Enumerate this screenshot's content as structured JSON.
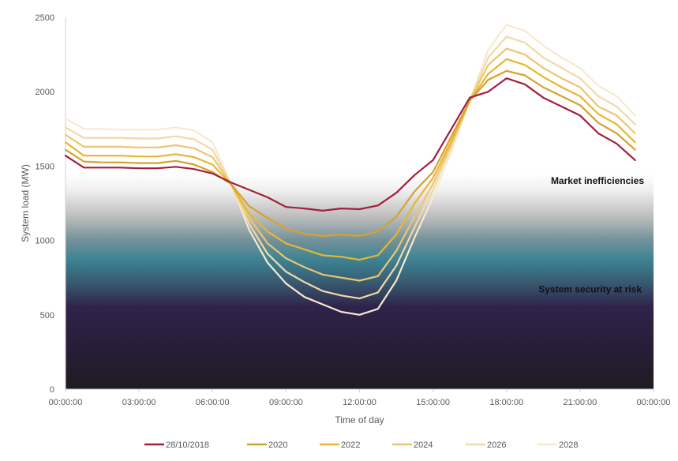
{
  "chart_data": {
    "type": "line",
    "title": "",
    "xlabel": "Time of day",
    "ylabel": "System load (MW)",
    "ylim": [
      0,
      2500
    ],
    "y_ticks": [
      "0",
      "500",
      "1000",
      "1500",
      "2000",
      "2500"
    ],
    "x_ticks": [
      "00:00:00",
      "03:00:00",
      "06:00:00",
      "09:00:00",
      "12:00:00",
      "15:00:00",
      "18:00:00",
      "21:00:00",
      "00:00:00"
    ],
    "x_hours": [
      0,
      0.75,
      1.5,
      2.25,
      3,
      3.75,
      4.5,
      5.25,
      6,
      6.75,
      7.5,
      8.25,
      9,
      9.75,
      10.5,
      11.25,
      12,
      12.75,
      13.5,
      14.25,
      15,
      15.75,
      16.5,
      17.25,
      18,
      18.75,
      19.5,
      20.25,
      21,
      21.75,
      22.5,
      23.25
    ],
    "grid": false,
    "legend_position": "bottom",
    "background_bands": [
      {
        "label": "Market inefficiencies",
        "from": 1000,
        "to": 1450
      },
      {
        "label": "System security at risk",
        "from": 0,
        "to": 1000
      }
    ],
    "series": [
      {
        "name": "28/10/2018",
        "color": "#a31f3c",
        "values": [
          1570,
          1490,
          1490,
          1490,
          1485,
          1485,
          1495,
          1480,
          1450,
          1390,
          1340,
          1290,
          1225,
          1215,
          1200,
          1215,
          1210,
          1235,
          1320,
          1440,
          1540,
          1750,
          1960,
          2000,
          2090,
          2050,
          1960,
          1900,
          1840,
          1720,
          1650,
          1540
        ]
      },
      {
        "name": "2020",
        "color": "#d4a32e",
        "values": [
          1610,
          1530,
          1525,
          1525,
          1520,
          1520,
          1535,
          1510,
          1460,
          1380,
          1230,
          1150,
          1080,
          1045,
          1030,
          1040,
          1030,
          1060,
          1160,
          1330,
          1460,
          1700,
          1940,
          2080,
          2140,
          2110,
          2030,
          1970,
          1910,
          1790,
          1720,
          1610
        ]
      },
      {
        "name": "2022",
        "color": "#e8b630",
        "values": [
          1660,
          1570,
          1570,
          1570,
          1565,
          1565,
          1580,
          1560,
          1510,
          1380,
          1180,
          1060,
          980,
          940,
          900,
          890,
          870,
          900,
          1040,
          1250,
          1420,
          1670,
          1940,
          2120,
          2220,
          2180,
          2100,
          2030,
          1970,
          1850,
          1780,
          1660
        ]
      },
      {
        "name": "2024",
        "color": "#edc571",
        "values": [
          1710,
          1630,
          1630,
          1630,
          1625,
          1625,
          1640,
          1620,
          1560,
          1380,
          1150,
          980,
          880,
          820,
          770,
          750,
          730,
          760,
          930,
          1160,
          1380,
          1650,
          1940,
          2180,
          2290,
          2250,
          2160,
          2090,
          2030,
          1900,
          1840,
          1720
        ]
      },
      {
        "name": "2026",
        "color": "#f2d9a7",
        "values": [
          1760,
          1690,
          1690,
          1690,
          1685,
          1685,
          1700,
          1680,
          1610,
          1380,
          1110,
          910,
          790,
          720,
          660,
          630,
          610,
          650,
          830,
          1090,
          1340,
          1630,
          1940,
          2230,
          2370,
          2330,
          2230,
          2160,
          2090,
          1970,
          1900,
          1780
        ]
      },
      {
        "name": "2028",
        "color": "#f7e9cf",
        "values": [
          1820,
          1750,
          1750,
          1745,
          1745,
          1745,
          1760,
          1740,
          1660,
          1380,
          1070,
          850,
          710,
          620,
          570,
          520,
          500,
          540,
          730,
          1020,
          1290,
          1600,
          1940,
          2280,
          2450,
          2410,
          2310,
          2230,
          2160,
          2040,
          1970,
          1840
        ]
      }
    ]
  }
}
